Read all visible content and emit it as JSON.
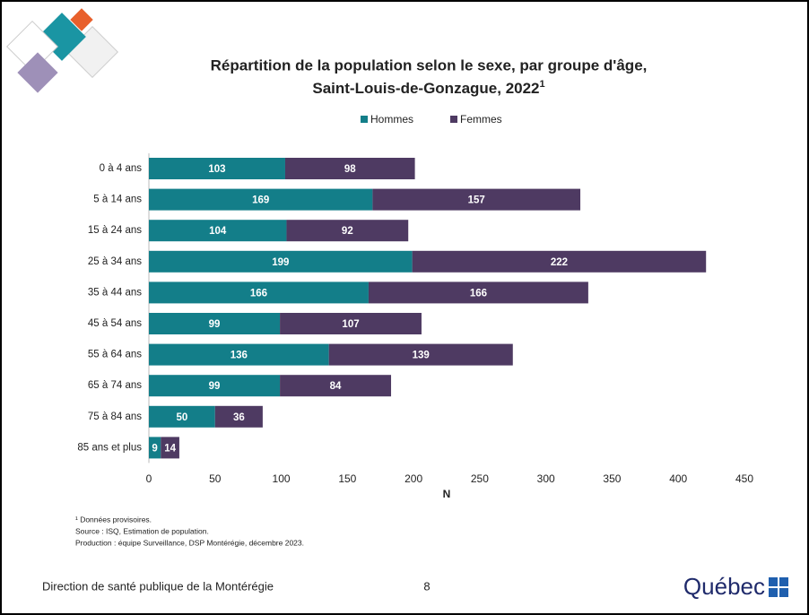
{
  "chart_data": {
    "type": "stacked-barh",
    "title_lines": [
      "Répartition de la population selon le sexe, par groupe d'âge,",
      "Saint-Louis-de-Gonzague, 2022"
    ],
    "title_superscript": "1",
    "categories": [
      "0 à 4 ans",
      "5 à 14 ans",
      "15 à 24 ans",
      "25 à 34 ans",
      "35 à 44 ans",
      "45 à 54 ans",
      "55 à 64 ans",
      "65 à 74 ans",
      "75 à 84 ans",
      "85 ans et plus"
    ],
    "series": [
      {
        "name": "Hommes",
        "color": "#137e89",
        "values": [
          103,
          169,
          104,
          199,
          166,
          99,
          136,
          99,
          50,
          9
        ]
      },
      {
        "name": "Femmes",
        "color": "#4e3a62",
        "values": [
          98,
          157,
          92,
          222,
          166,
          107,
          139,
          84,
          36,
          14
        ]
      }
    ],
    "x_label": "N",
    "xlim": [
      0,
      450
    ],
    "xticks": [
      0,
      50,
      100,
      150,
      200,
      250,
      300,
      350,
      400,
      450
    ],
    "legend": "top",
    "notes": [
      "¹ Données provisoires.",
      "Source : ISQ, Estimation de population.",
      "Production : équipe Surveillance, DSP Montérégie, décembre 2023."
    ]
  },
  "footer": {
    "organization": "Direction de santé publique de la Montérégie",
    "page": "8",
    "logo": "Québec"
  }
}
